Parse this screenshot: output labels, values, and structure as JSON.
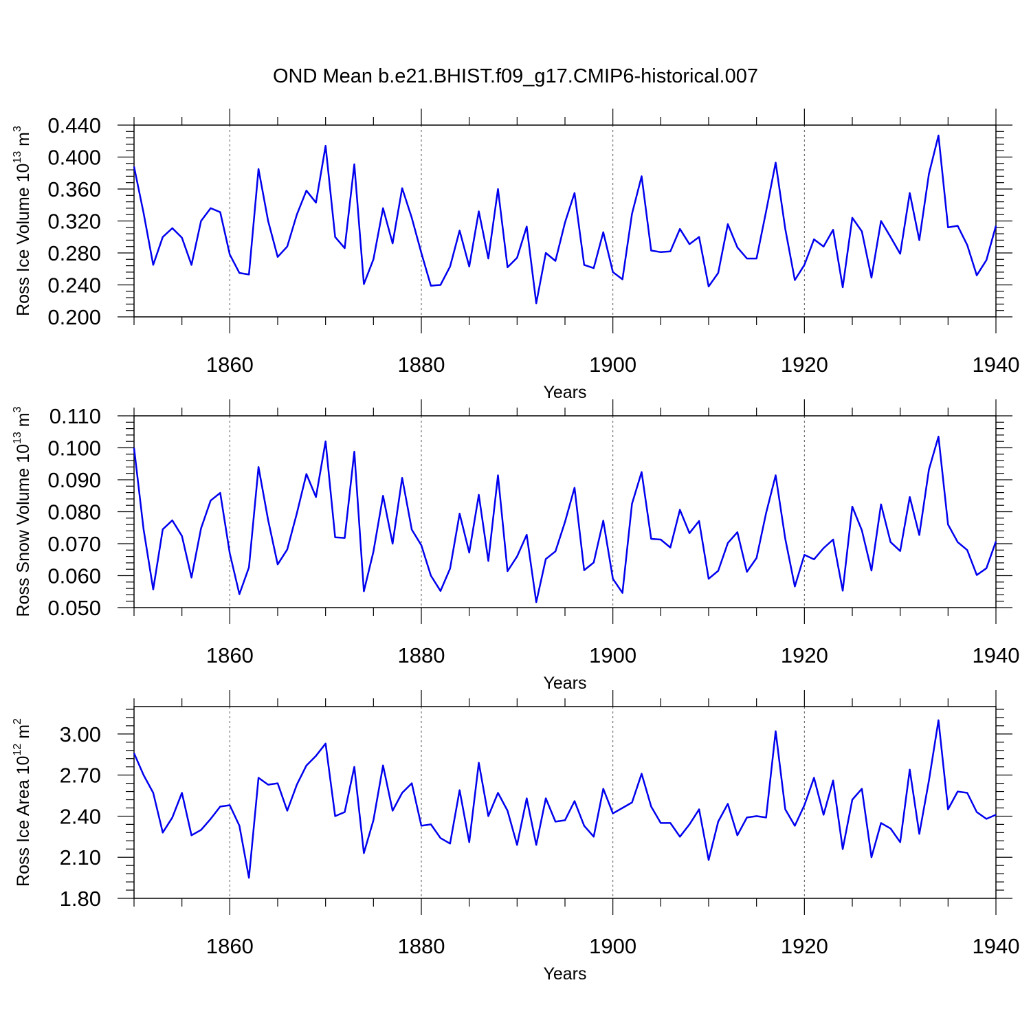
{
  "title": "OND Mean b.e21.BHIST.f09_g17.CMIP6-historical.007",
  "colors": {
    "line": "#0000ee",
    "axis": "#000000",
    "grid": "#555555",
    "background": "#ffffff"
  },
  "chart_data": [
    {
      "type": "line",
      "ylabel_main": "Ross Ice Volume 10",
      "ylabel_exp": "13",
      "ylabel_unit": " m",
      "ylabel_unit_exp": "3",
      "xlabel": "Years",
      "xlim": [
        1850,
        1940
      ],
      "ylim": [
        0.2,
        0.44
      ],
      "yticks": [
        "0.200",
        "0.240",
        "0.280",
        "0.320",
        "0.360",
        "0.400",
        "0.440"
      ],
      "xticks": [
        "1860",
        "1880",
        "1900",
        "1920",
        "1940"
      ],
      "x_start": 1850,
      "values": [
        0.388,
        0.33,
        0.265,
        0.3,
        0.311,
        0.299,
        0.265,
        0.32,
        0.336,
        0.331,
        0.278,
        0.255,
        0.253,
        0.385,
        0.32,
        0.275,
        0.288,
        0.328,
        0.358,
        0.343,
        0.414,
        0.3,
        0.286,
        0.391,
        0.241,
        0.272,
        0.336,
        0.292,
        0.361,
        0.324,
        0.28,
        0.239,
        0.24,
        0.263,
        0.308,
        0.263,
        0.332,
        0.273,
        0.36,
        0.262,
        0.274,
        0.313,
        0.217,
        0.28,
        0.27,
        0.318,
        0.355,
        0.265,
        0.261,
        0.306,
        0.256,
        0.247,
        0.329,
        0.376,
        0.283,
        0.281,
        0.282,
        0.31,
        0.291,
        0.3,
        0.238,
        0.255,
        0.316,
        0.287,
        0.273,
        0.273,
        0.332,
        0.393,
        0.31,
        0.246,
        0.265,
        0.297,
        0.288,
        0.309,
        0.237,
        0.324,
        0.307,
        0.249,
        0.32,
        0.3,
        0.279,
        0.355,
        0.296,
        0.379,
        0.427,
        0.312,
        0.314,
        0.29,
        0.252,
        0.271,
        0.314
      ]
    },
    {
      "type": "line",
      "ylabel_main": "Ross Snow Volume 10",
      "ylabel_exp": "13",
      "ylabel_unit": " m",
      "ylabel_unit_exp": "3",
      "xlabel": "Years",
      "xlim": [
        1850,
        1940
      ],
      "ylim": [
        0.05,
        0.11
      ],
      "yticks": [
        "0.050",
        "0.060",
        "0.070",
        "0.080",
        "0.090",
        "0.100",
        "0.110"
      ],
      "xticks": [
        "1860",
        "1880",
        "1900",
        "1920",
        "1940"
      ],
      "x_start": 1850,
      "values": [
        0.1,
        0.0745,
        0.0557,
        0.0745,
        0.0773,
        0.0724,
        0.0594,
        0.0748,
        0.0835,
        0.0859,
        0.067,
        0.0542,
        0.0626,
        0.094,
        0.0774,
        0.0635,
        0.0682,
        0.0795,
        0.0918,
        0.0846,
        0.102,
        0.072,
        0.0718,
        0.0988,
        0.0551,
        0.0675,
        0.085,
        0.07,
        0.0906,
        0.0744,
        0.0695,
        0.06,
        0.0552,
        0.0622,
        0.0794,
        0.0672,
        0.0853,
        0.0646,
        0.0914,
        0.0614,
        0.066,
        0.0728,
        0.0517,
        0.0652,
        0.0676,
        0.0768,
        0.0875,
        0.0617,
        0.0641,
        0.0772,
        0.059,
        0.0546,
        0.0825,
        0.0924,
        0.0715,
        0.0713,
        0.0688,
        0.0806,
        0.0733,
        0.0771,
        0.059,
        0.0615,
        0.0702,
        0.0736,
        0.0612,
        0.0655,
        0.0796,
        0.0914,
        0.0715,
        0.0566,
        0.0665,
        0.0651,
        0.0686,
        0.0713,
        0.0553,
        0.0816,
        0.0742,
        0.0616,
        0.0823,
        0.0705,
        0.0677,
        0.0846,
        0.0727,
        0.0932,
        0.1035,
        0.076,
        0.0705,
        0.068,
        0.0602,
        0.0623,
        0.0707
      ]
    },
    {
      "type": "line",
      "ylabel_main": "Ross Ice Area 10",
      "ylabel_exp": "12",
      "ylabel_unit": " m",
      "ylabel_unit_exp": "2",
      "xlabel": "Years",
      "xlim": [
        1850,
        1940
      ],
      "ylim": [
        1.8,
        3.2
      ],
      "yticks": [
        "1.80",
        "2.10",
        "2.40",
        "2.70",
        "3.00"
      ],
      "xticks": [
        "1860",
        "1880",
        "1900",
        "1920",
        "1940"
      ],
      "x_start": 1850,
      "values": [
        2.86,
        2.7,
        2.57,
        2.28,
        2.39,
        2.57,
        2.26,
        2.3,
        2.38,
        2.47,
        2.48,
        2.33,
        1.95,
        2.68,
        2.63,
        2.64,
        2.44,
        2.63,
        2.77,
        2.84,
        2.93,
        2.4,
        2.43,
        2.76,
        2.13,
        2.37,
        2.77,
        2.44,
        2.57,
        2.64,
        2.33,
        2.34,
        2.24,
        2.2,
        2.59,
        2.21,
        2.79,
        2.4,
        2.57,
        2.44,
        2.19,
        2.53,
        2.19,
        2.53,
        2.36,
        2.37,
        2.51,
        2.33,
        2.25,
        2.6,
        2.42,
        2.46,
        2.5,
        2.71,
        2.47,
        2.35,
        2.35,
        2.25,
        2.34,
        2.45,
        2.08,
        2.36,
        2.49,
        2.26,
        2.39,
        2.4,
        2.39,
        3.02,
        2.45,
        2.33,
        2.48,
        2.68,
        2.41,
        2.66,
        2.16,
        2.52,
        2.6,
        2.1,
        2.35,
        2.31,
        2.21,
        2.74,
        2.27,
        2.66,
        3.1,
        2.45,
        2.58,
        2.57,
        2.43,
        2.38,
        2.41
      ]
    }
  ]
}
